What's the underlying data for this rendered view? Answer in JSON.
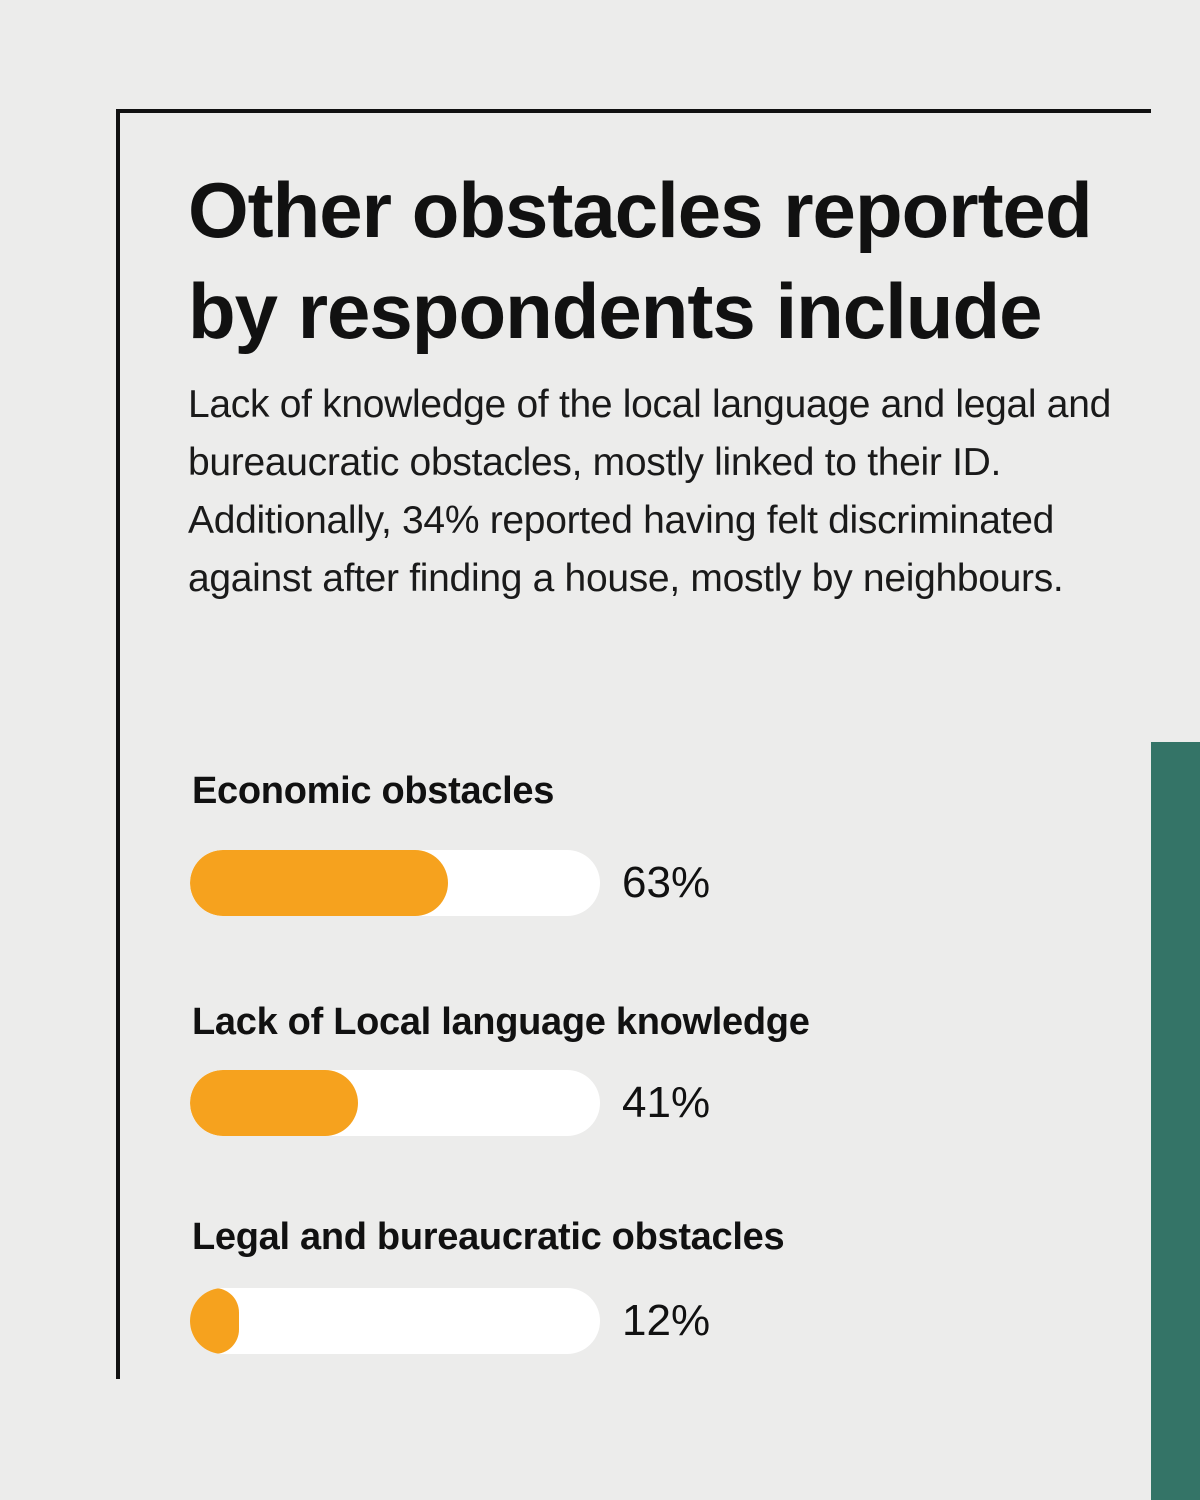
{
  "theme": {
    "bg": "#ECECEB",
    "ink": "#111111",
    "teal": "#347467",
    "orange": "#F6A21E",
    "track": "#FFFFFF"
  },
  "header": {
    "title_line1": "Other obstacles reported",
    "title_line2": "by respondents include",
    "description": "Lack of knowledge of the local language and legal and bureaucratic obstacles, mostly linked to their ID. Additionally, 34% reported having felt discriminated against after finding a house, mostly by neighbours."
  },
  "chart_data": {
    "type": "bar",
    "orientation": "horizontal",
    "title": "Other obstacles reported by respondents include",
    "categories": [
      "Economic obstacles",
      "Lack of Local language knowledge",
      "Legal and bureaucratic obstacles"
    ],
    "values": [
      63,
      41,
      12
    ],
    "value_labels": [
      "63%",
      "41%",
      "12%"
    ],
    "xlim": [
      0,
      100
    ],
    "grid": false,
    "legend": "none",
    "bar_fill_color": "#F6A21E",
    "bar_track_color": "#FFFFFF"
  }
}
